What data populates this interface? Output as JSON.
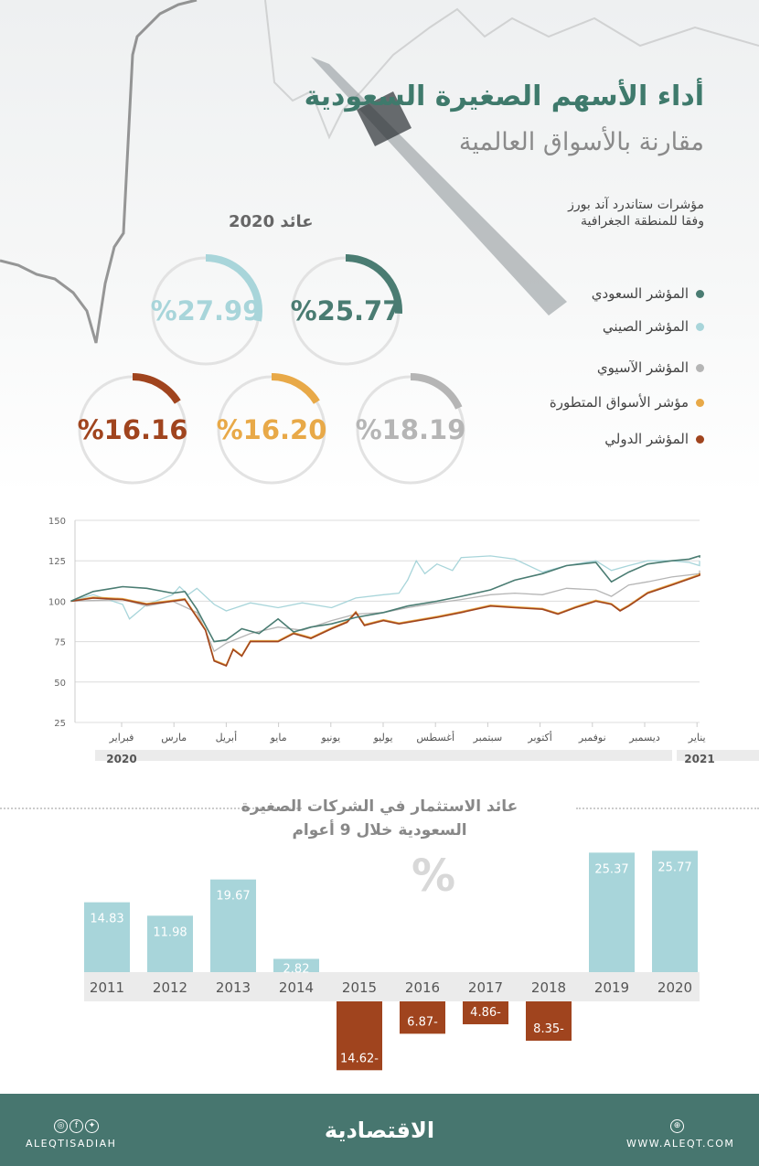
{
  "header": {
    "title": "أداء الأسهم الصغيرة السعودية",
    "subtitle": "مقارنة بالأسواق العالمية",
    "note_line1": "مؤشرات ستاندرد آند بورز",
    "note_line2": "وفقا للمنطقة الجغرافية",
    "return_label": "عائد 2020"
  },
  "gauges": [
    {
      "label": "%25.77",
      "value": 25.77,
      "color": "#4a7c72"
    },
    {
      "label": "%27.99",
      "value": 27.99,
      "color": "#a8d5da"
    },
    {
      "label": "%18.19",
      "value": 18.19,
      "color": "#b5b5b5"
    },
    {
      "label": "%16.20",
      "value": 16.2,
      "color": "#e8a948"
    },
    {
      "label": "%16.16",
      "value": 16.16,
      "color": "#a0441e"
    }
  ],
  "legend": [
    {
      "label": "المؤشر السعودي",
      "color": "#4a7c72"
    },
    {
      "label": "المؤشر الصيني",
      "color": "#a8d5da"
    },
    {
      "label": "المؤشر الآسيوي",
      "color": "#b5b5b5"
    },
    {
      "label": "مؤشر الأسواق المتطورة",
      "color": "#e8a948"
    },
    {
      "label": "المؤشر الدولي",
      "color": "#a0441e"
    }
  ],
  "chart_data": [
    {
      "type": "line",
      "ylim": [
        25,
        150
      ],
      "yticks": [
        "150",
        "125",
        "100",
        "75",
        "50",
        "25"
      ],
      "grid": true,
      "xticks": [
        "فبراير",
        "مارس",
        "أبريل",
        "مايو",
        "يونيو",
        "يوليو",
        "أغسطس",
        "سبتمبر",
        "أكتوبر",
        "نوفمبر",
        "ديسمبر",
        "يناير"
      ],
      "years": [
        "2020",
        "2021"
      ],
      "series": [
        {
          "name": "المؤشر الصيني",
          "color": "#a8d5da",
          "points": [
            [
              "2020-01-02",
              100
            ],
            [
              "2020-01-15",
              104
            ],
            [
              "2020-02-01",
              98
            ],
            [
              "2020-02-05",
              89
            ],
            [
              "2020-02-15",
              98
            ],
            [
              "2020-03-01",
              104
            ],
            [
              "2020-03-05",
              109
            ],
            [
              "2020-03-10",
              104
            ],
            [
              "2020-03-15",
              108
            ],
            [
              "2020-03-25",
              98
            ],
            [
              "2020-04-01",
              94
            ],
            [
              "2020-04-15",
              99
            ],
            [
              "2020-05-01",
              96
            ],
            [
              "2020-05-15",
              99
            ],
            [
              "2020-06-01",
              96
            ],
            [
              "2020-06-15",
              102
            ],
            [
              "2020-07-01",
              104
            ],
            [
              "2020-07-10",
              105
            ],
            [
              "2020-07-15",
              113
            ],
            [
              "2020-07-20",
              125
            ],
            [
              "2020-07-25",
              117
            ],
            [
              "2020-08-01",
              123
            ],
            [
              "2020-08-10",
              119
            ],
            [
              "2020-08-15",
              127
            ],
            [
              "2020-09-01",
              128
            ],
            [
              "2020-09-15",
              126
            ],
            [
              "2020-10-01",
              118
            ],
            [
              "2020-10-15",
              122
            ],
            [
              "2020-11-01",
              125
            ],
            [
              "2020-11-10",
              119
            ],
            [
              "2020-11-20",
              122
            ],
            [
              "2020-12-01",
              125
            ],
            [
              "2020-12-15",
              125
            ],
            [
              "2020-12-25",
              124
            ],
            [
              "2021-01-01",
              122
            ],
            [
              "2021-01-05",
              125
            ]
          ]
        },
        {
          "name": "المؤشر الآسيوي",
          "color": "#b5b5b5",
          "points": [
            [
              "2020-01-02",
              100
            ],
            [
              "2020-02-01",
              101
            ],
            [
              "2020-02-15",
              97
            ],
            [
              "2020-03-01",
              100
            ],
            [
              "2020-03-15",
              93
            ],
            [
              "2020-03-20",
              82
            ],
            [
              "2020-03-25",
              69
            ],
            [
              "2020-04-01",
              74
            ],
            [
              "2020-04-15",
              80
            ],
            [
              "2020-05-01",
              84
            ],
            [
              "2020-05-15",
              82
            ],
            [
              "2020-06-01",
              88
            ],
            [
              "2020-06-15",
              92
            ],
            [
              "2020-07-01",
              93
            ],
            [
              "2020-07-15",
              96
            ],
            [
              "2020-08-01",
              99
            ],
            [
              "2020-08-15",
              101
            ],
            [
              "2020-09-01",
              104
            ],
            [
              "2020-09-15",
              105
            ],
            [
              "2020-10-01",
              104
            ],
            [
              "2020-10-15",
              108
            ],
            [
              "2020-11-01",
              107
            ],
            [
              "2020-11-10",
              103
            ],
            [
              "2020-11-20",
              110
            ],
            [
              "2020-12-01",
              112
            ],
            [
              "2020-12-15",
              115
            ],
            [
              "2021-01-01",
              117
            ],
            [
              "2021-01-05",
              119
            ]
          ]
        },
        {
          "name": "مؤشر الأسواق المتطورة",
          "color": "#e8a948",
          "points": [
            [
              "2020-01-02",
              100
            ],
            [
              "2020-01-15",
              102.5
            ],
            [
              "2020-02-01",
              101.5
            ],
            [
              "2020-02-15",
              98.5
            ],
            [
              "2020-03-01",
              100.5
            ],
            [
              "2020-03-08",
              101.5
            ],
            [
              "2020-03-15",
              90.5
            ],
            [
              "2020-03-20",
              82.5
            ],
            [
              "2020-03-25",
              63.5
            ],
            [
              "2020-04-01",
              60.5
            ],
            [
              "2020-04-05",
              70.5
            ],
            [
              "2020-04-10",
              66.5
            ],
            [
              "2020-04-15",
              75.5
            ],
            [
              "2020-05-01",
              75.5
            ],
            [
              "2020-05-10",
              80.5
            ],
            [
              "2020-05-20",
              77.5
            ],
            [
              "2020-06-01",
              83.5
            ],
            [
              "2020-06-10",
              87.5
            ],
            [
              "2020-06-15",
              93.5
            ],
            [
              "2020-06-20",
              85.5
            ],
            [
              "2020-07-01",
              88.5
            ],
            [
              "2020-07-10",
              86.5
            ],
            [
              "2020-08-01",
              90.5
            ],
            [
              "2020-08-15",
              93.5
            ],
            [
              "2020-09-01",
              97.5
            ],
            [
              "2020-09-15",
              96.5
            ],
            [
              "2020-10-01",
              95.5
            ],
            [
              "2020-10-10",
              92.5
            ],
            [
              "2020-10-20",
              96.5
            ],
            [
              "2020-11-01",
              100.5
            ],
            [
              "2020-11-10",
              98.5
            ],
            [
              "2020-11-15",
              94.5
            ],
            [
              "2020-11-20",
              97.5
            ],
            [
              "2020-12-01",
              105.5
            ],
            [
              "2020-12-15",
              110.5
            ],
            [
              "2021-01-01",
              116.5
            ],
            [
              "2021-01-05",
              117.5
            ]
          ]
        },
        {
          "name": "المؤشر الدولي",
          "color": "#a0441e",
          "points": [
            [
              "2020-01-02",
              100
            ],
            [
              "2020-01-15",
              102
            ],
            [
              "2020-02-01",
              101
            ],
            [
              "2020-02-15",
              98
            ],
            [
              "2020-03-01",
              100
            ],
            [
              "2020-03-08",
              101
            ],
            [
              "2020-03-15",
              90
            ],
            [
              "2020-03-20",
              82
            ],
            [
              "2020-03-25",
              63
            ],
            [
              "2020-04-01",
              60
            ],
            [
              "2020-04-05",
              70
            ],
            [
              "2020-04-10",
              66
            ],
            [
              "2020-04-15",
              75
            ],
            [
              "2020-05-01",
              75
            ],
            [
              "2020-05-10",
              80
            ],
            [
              "2020-05-20",
              77
            ],
            [
              "2020-06-01",
              83
            ],
            [
              "2020-06-10",
              87
            ],
            [
              "2020-06-15",
              93
            ],
            [
              "2020-06-20",
              85
            ],
            [
              "2020-07-01",
              88
            ],
            [
              "2020-07-10",
              86
            ],
            [
              "2020-08-01",
              90
            ],
            [
              "2020-08-15",
              93
            ],
            [
              "2020-09-01",
              97
            ],
            [
              "2020-09-15",
              96
            ],
            [
              "2020-10-01",
              95
            ],
            [
              "2020-10-10",
              92
            ],
            [
              "2020-10-20",
              96
            ],
            [
              "2020-11-01",
              100
            ],
            [
              "2020-11-10",
              98
            ],
            [
              "2020-11-15",
              94
            ],
            [
              "2020-11-20",
              97
            ],
            [
              "2020-12-01",
              105
            ],
            [
              "2020-12-15",
              110
            ],
            [
              "2021-01-01",
              116
            ],
            [
              "2021-01-05",
              117
            ]
          ]
        },
        {
          "name": "المؤشر السعودي",
          "color": "#4a7c72",
          "points": [
            [
              "2020-01-02",
              100
            ],
            [
              "2020-01-15",
              106
            ],
            [
              "2020-02-01",
              109
            ],
            [
              "2020-02-15",
              108
            ],
            [
              "2020-03-01",
              105
            ],
            [
              "2020-03-08",
              106
            ],
            [
              "2020-03-15",
              95
            ],
            [
              "2020-03-20",
              85
            ],
            [
              "2020-03-25",
              75
            ],
            [
              "2020-04-01",
              76
            ],
            [
              "2020-04-10",
              83
            ],
            [
              "2020-04-20",
              80
            ],
            [
              "2020-05-01",
              89
            ],
            [
              "2020-05-10",
              81
            ],
            [
              "2020-05-20",
              84
            ],
            [
              "2020-06-01",
              86
            ],
            [
              "2020-06-15",
              90
            ],
            [
              "2020-07-01",
              93
            ],
            [
              "2020-07-15",
              97
            ],
            [
              "2020-08-01",
              100
            ],
            [
              "2020-08-15",
              103
            ],
            [
              "2020-09-01",
              107
            ],
            [
              "2020-09-15",
              113
            ],
            [
              "2020-10-01",
              117
            ],
            [
              "2020-10-15",
              122
            ],
            [
              "2020-11-01",
              124
            ],
            [
              "2020-11-10",
              112
            ],
            [
              "2020-11-20",
              118
            ],
            [
              "2020-12-01",
              123
            ],
            [
              "2020-12-15",
              125
            ],
            [
              "2020-12-25",
              126
            ],
            [
              "2021-01-01",
              128
            ],
            [
              "2021-01-05",
              127
            ]
          ]
        }
      ]
    },
    {
      "type": "bar",
      "title_line1": "عائد الاستثمار في الشركات الصغيرة",
      "title_line2": "السعودية خلال 9 أعوام",
      "unit": "%",
      "categories": [
        "2011",
        "2012",
        "2013",
        "2014",
        "2015",
        "2016",
        "2017",
        "2018",
        "2019",
        "2020"
      ],
      "values": [
        14.83,
        11.98,
        19.67,
        2.82,
        -14.62,
        -6.87,
        -4.86,
        -8.35,
        25.37,
        25.77
      ],
      "labels": [
        "14.83",
        "11.98",
        "19.67",
        "2.82",
        "14.62-",
        "6.87-",
        "4.86-",
        "8.35-",
        "25.37",
        "25.77"
      ],
      "positive_color": "#a8d5da",
      "negative_color": "#a0441e"
    }
  ],
  "footer": {
    "social_handle": "ALEQTISADIAH",
    "brand": "الاقتصادية",
    "website": "WWW.ALEQT.COM",
    "icons": [
      "instagram-icon",
      "facebook-icon",
      "twitter-icon",
      "globe-icon"
    ]
  }
}
